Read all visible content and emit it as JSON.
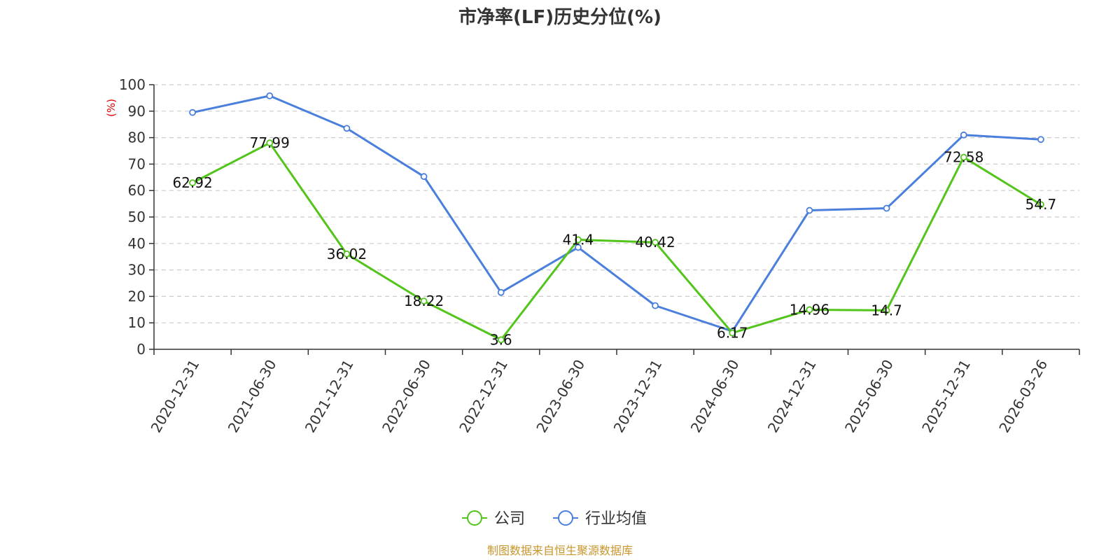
{
  "chart_data": {
    "type": "line",
    "title": "市净率(LF)历史分位(%)",
    "ylabel": "(%)",
    "ylim": [
      0,
      100
    ],
    "yticks": [
      0,
      10,
      20,
      30,
      40,
      50,
      60,
      70,
      80,
      90,
      100
    ],
    "categories": [
      "2020-12-31",
      "2021-06-30",
      "2021-12-31",
      "2022-06-30",
      "2022-12-31",
      "2023-06-30",
      "2023-12-31",
      "2024-06-30",
      "2024-12-31",
      "2025-06-30",
      "2025-12-31",
      "2026-03-26"
    ],
    "grid": "horizontal-dashed",
    "legend_position": "bottom-center",
    "series": [
      {
        "name": "公司",
        "color": "#52c41a",
        "values": [
          62.92,
          77.99,
          36.02,
          18.22,
          3.6,
          41.4,
          40.42,
          6.17,
          14.96,
          14.7,
          72.58,
          54.7
        ],
        "labels": [
          "62.92",
          "77.99",
          "36.02",
          "18.22",
          "3.6",
          "41.4",
          "40.42",
          "6.17",
          "14.96",
          "14.7",
          "72.58",
          "54.7"
        ],
        "show_labels": true
      },
      {
        "name": "行业均值",
        "color": "#4a7fdc",
        "values": [
          89.5,
          95.8,
          83.5,
          65.3,
          21.5,
          38.5,
          16.5,
          6.8,
          52.5,
          53.3,
          81.0,
          79.3
        ],
        "show_labels": false
      }
    ],
    "source": "制图数据来自恒生聚源数据库"
  }
}
